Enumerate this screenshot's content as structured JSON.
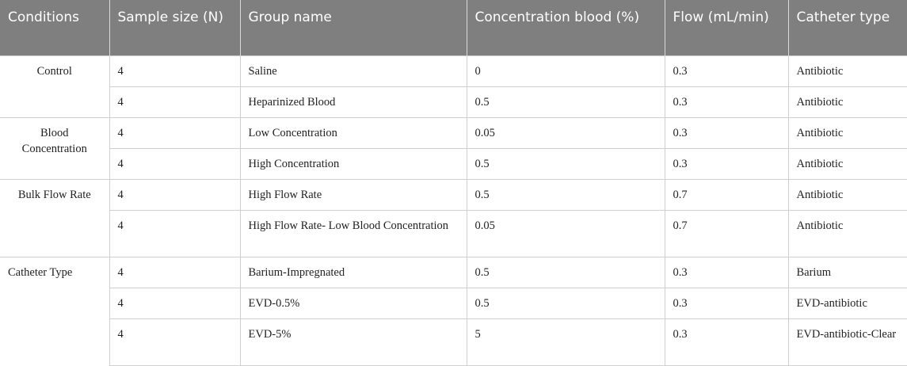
{
  "table": {
    "headers": [
      "Conditions",
      "Sample size (N)",
      "Group name",
      "Concentration blood (%)",
      "Flow (mL/min)",
      "Catheter type"
    ],
    "groups": [
      {
        "condition": "Control",
        "rows": [
          [
            "4",
            "Saline",
            "0",
            "0.3",
            "Antibiotic"
          ],
          [
            "4",
            "Heparinized Blood",
            "0.5",
            "0.3",
            "Antibiotic"
          ]
        ]
      },
      {
        "condition": "Blood Concentration",
        "rows": [
          [
            "4",
            "Low Concentration",
            "0.05",
            "0.3",
            "Antibiotic"
          ],
          [
            "4",
            "High Concentration",
            "0.5",
            "0.3",
            "Antibiotic"
          ]
        ]
      },
      {
        "condition": "Bulk Flow Rate",
        "rows": [
          [
            "4",
            "High Flow Rate",
            "0.5",
            "0.7",
            "Antibiotic"
          ],
          [
            "4",
            "High Flow Rate- Low Blood Concentration",
            "0.05",
            "0.7",
            "Antibiotic"
          ]
        ]
      },
      {
        "condition": "Catheter Type",
        "rows": [
          [
            "4",
            "Barium-Impregnated",
            "0.5",
            "0.3",
            "Barium"
          ],
          [
            "4",
            "EVD-0.5%",
            "0.5",
            "0.3",
            "EVD-antibiotic"
          ],
          [
            "4",
            "EVD-5%",
            "5",
            "0.3",
            "EVD-antibiotic-Clear"
          ]
        ]
      }
    ]
  }
}
